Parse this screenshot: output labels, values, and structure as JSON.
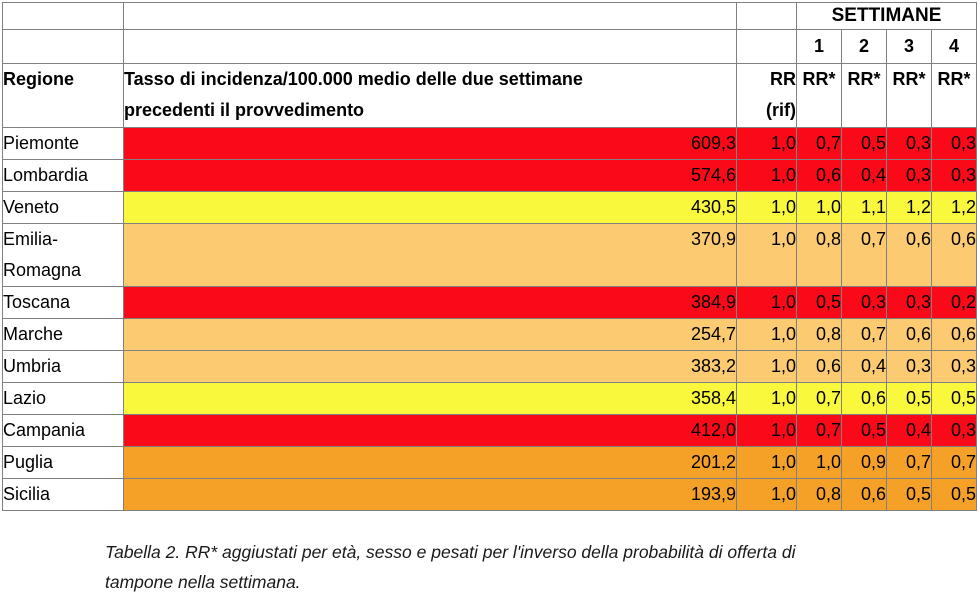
{
  "table": {
    "header": {
      "settimane_label": "SETTIMANE",
      "week_numbers": [
        "1",
        "2",
        "3",
        "4"
      ],
      "col_regione": "Regione",
      "col_tasso_lines": [
        "Tasso di incidenza/100.000 medio delle due settimane",
        "precedenti il provvedimento"
      ],
      "col_rr_lines": [
        "RR",
        "(rif)"
      ],
      "col_rr_star": "RR*"
    },
    "rows": [
      {
        "regione": "Piemonte",
        "tasso": "609,3",
        "rr_rif": "1,0",
        "rr_weeks": [
          "0,7",
          "0,5",
          "0,3",
          "0,3"
        ],
        "zone_color": "red"
      },
      {
        "regione": "Lombardia",
        "tasso": "574,6",
        "rr_rif": "1,0",
        "rr_weeks": [
          "0,6",
          "0,4",
          "0,3",
          "0,3"
        ],
        "zone_color": "red"
      },
      {
        "regione": "Veneto",
        "tasso": "430,5",
        "rr_rif": "1,0",
        "rr_weeks": [
          "1,0",
          "1,1",
          "1,2",
          "1,2"
        ],
        "zone_color": "yellow"
      },
      {
        "regione": "Emilia-Romagna",
        "tasso": "370,9",
        "rr_rif": "1,0",
        "rr_weeks": [
          "0,8",
          "0,7",
          "0,6",
          "0,6"
        ],
        "zone_color": "orange_light"
      },
      {
        "regione": "Toscana",
        "tasso": "384,9",
        "rr_rif": "1,0",
        "rr_weeks": [
          "0,5",
          "0,3",
          "0,3",
          "0,2"
        ],
        "zone_color": "red"
      },
      {
        "regione": "Marche",
        "tasso": "254,7",
        "rr_rif": "1,0",
        "rr_weeks": [
          "0,8",
          "0,7",
          "0,6",
          "0,6"
        ],
        "zone_color": "orange_light"
      },
      {
        "regione": "Umbria",
        "tasso": "383,2",
        "rr_rif": "1,0",
        "rr_weeks": [
          "0,6",
          "0,4",
          "0,3",
          "0,3"
        ],
        "zone_color": "orange_light"
      },
      {
        "regione": "Lazio",
        "tasso": "358,4",
        "rr_rif": "1,0",
        "rr_weeks": [
          "0,7",
          "0,6",
          "0,5",
          "0,5"
        ],
        "zone_color": "yellow"
      },
      {
        "regione": "Campania",
        "tasso": "412,0",
        "rr_rif": "1,0",
        "rr_weeks": [
          "0,7",
          "0,5",
          "0,4",
          "0,3"
        ],
        "zone_color": "red"
      },
      {
        "regione": "Puglia",
        "tasso": "201,2",
        "rr_rif": "1,0",
        "rr_weeks": [
          "1,0",
          "0,9",
          "0,7",
          "0,7"
        ],
        "zone_color": "orange"
      },
      {
        "regione": "Sicilia",
        "tasso": "193,9",
        "rr_rif": "1,0",
        "rr_weeks": [
          "0,8",
          "0,6",
          "0,5",
          "0,5"
        ],
        "zone_color": "orange"
      }
    ]
  },
  "colors": {
    "red": "#FA0A19",
    "yellow": "#FAF83C",
    "orange_light": "#FCCA71",
    "orange": "#F5A127",
    "border": "#808080"
  },
  "caption": {
    "lines": [
      "Tabella 2. RR* aggiustati per età, sesso e pesati per l'inverso della probabilità di offerta di",
      "tampone nella settimana."
    ]
  }
}
